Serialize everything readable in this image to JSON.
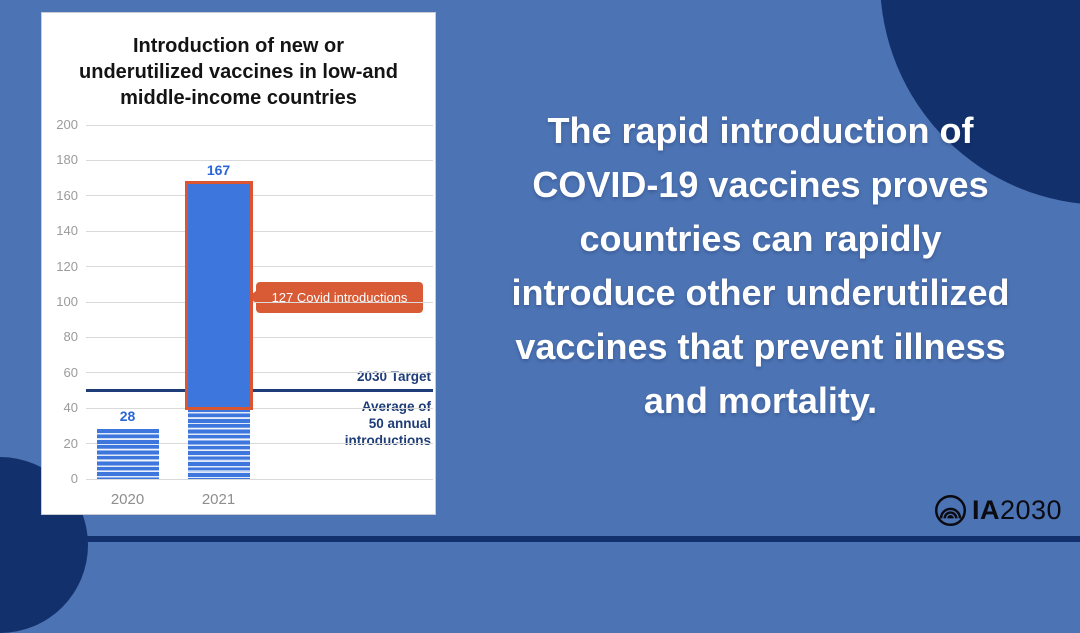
{
  "infographic": {
    "background_color": "#4C73B3",
    "accent_navy": "#12306B",
    "headline_lines": [
      "The rapid introduction of",
      "COVID-19 vaccines proves",
      "countries can rapidly",
      "introduce other underutilized",
      "vaccines that prevent illness",
      "and mortality."
    ],
    "logo": {
      "prefix": "IA",
      "year": "2030",
      "icon": "concentric-arcs-icon"
    }
  },
  "chart_data": {
    "type": "bar",
    "title": "Introduction of new or underutilized vaccines in low-and middle-income countries",
    "title_lines": [
      "Introduction of new or",
      "underutilized vaccines in low-and",
      "middle-income countries"
    ],
    "categories": [
      "2020",
      "2021"
    ],
    "values": [
      28,
      167
    ],
    "bar_value_labels": [
      "28",
      "167"
    ],
    "ylim": [
      0,
      200
    ],
    "y_ticks": [
      0,
      20,
      40,
      60,
      80,
      100,
      120,
      140,
      160,
      180,
      200
    ],
    "grid": true,
    "legend": "none",
    "segments": {
      "2021": {
        "covid_introductions": 127,
        "other_introductions": 40
      }
    },
    "callout": {
      "text": "127 Covid introductions",
      "points_to_category": "2021"
    },
    "target_line": {
      "value": 50,
      "label": "2030 Target",
      "sublabel_lines": [
        "Average of",
        "50 annual",
        "introductions"
      ]
    },
    "colors": {
      "bar": "#3D76DC",
      "stripe": "#FFFFFF",
      "covid_outline": "#DB5531",
      "callout_bg": "#D85B36",
      "target_line": "#1E3C78",
      "value_label": "#2B66D9",
      "axis_label": "#9B9B9B",
      "gridline": "#D9D9D9"
    }
  }
}
